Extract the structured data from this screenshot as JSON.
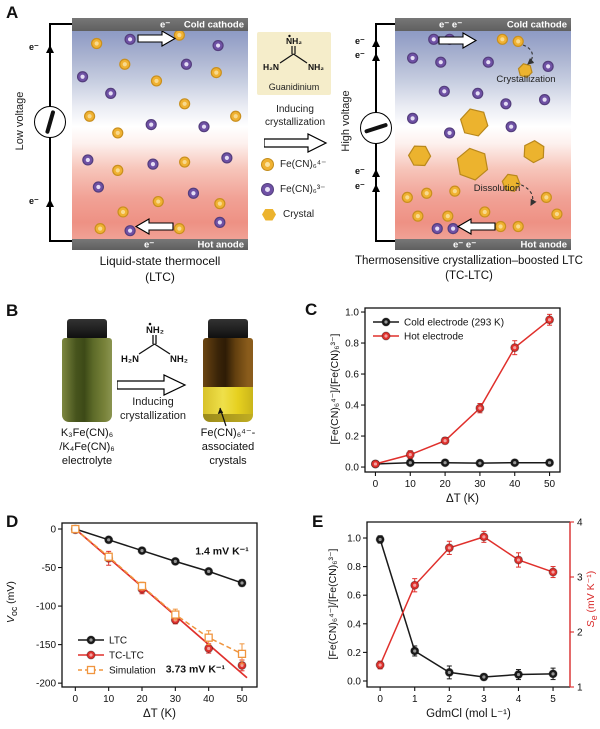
{
  "figure": {
    "panel_a": {
      "label": "A",
      "ltc": {
        "cold_electrode": "Cold cathode",
        "hot_electrode": "Hot anode",
        "e_top": "e⁻",
        "e_bottom": "e⁻",
        "wire_e": "e⁻",
        "voltage_label": "Low voltage",
        "caption_line1": "Liquid-state thermocell",
        "caption_line2": "(LTC)"
      },
      "tcltc": {
        "cold_electrode": "Cold cathode",
        "hot_electrode": "Hot anode",
        "e_top": "e⁻ e⁻",
        "e_bottom": "e⁻ e⁻",
        "wire_e": "e⁻",
        "voltage_label": "High voltage",
        "crystallization_label": "Crystallization",
        "dissolution_label": "Dissolution",
        "caption_line1": "Thermosensitive crystallization–boosted LTC",
        "caption_line2": "(TC-LTC)"
      },
      "guanidinium": {
        "top": "NH₂",
        "left": "H₂N",
        "right": "NH₂",
        "name": "Guanidinium"
      },
      "inducing_line1": "Inducing",
      "inducing_line2": "crystallization",
      "legend": [
        {
          "icon": "ferrocyanide-icon",
          "label": "Fe(CN)₆⁴⁻"
        },
        {
          "icon": "ferricyanide-icon",
          "label": "Fe(CN)₆³⁻"
        },
        {
          "icon": "crystal-icon",
          "label": "Crystal"
        }
      ],
      "particles_ltc": [
        [
          "p",
          33,
          4
        ],
        [
          "y",
          61,
          2
        ],
        [
          "p",
          83,
          7
        ],
        [
          "y",
          14,
          6
        ],
        [
          "p",
          6,
          22
        ],
        [
          "y",
          30,
          16
        ],
        [
          "p",
          65,
          16
        ],
        [
          "y",
          82,
          20
        ],
        [
          "p",
          22,
          30
        ],
        [
          "y",
          48,
          24
        ],
        [
          "y",
          64,
          35
        ],
        [
          "y",
          10,
          41
        ],
        [
          "p",
          45,
          45
        ],
        [
          "y",
          26,
          49
        ],
        [
          "p",
          75,
          46
        ],
        [
          "y",
          93,
          41
        ],
        [
          "p",
          9,
          62
        ],
        [
          "p",
          46,
          64
        ],
        [
          "y",
          64,
          63
        ],
        [
          "p",
          88,
          61
        ],
        [
          "y",
          26,
          67
        ],
        [
          "p",
          15,
          75
        ],
        [
          "p",
          69,
          78
        ],
        [
          "y",
          49,
          82
        ],
        [
          "y",
          84,
          83
        ],
        [
          "y",
          29,
          87
        ],
        [
          "p",
          33,
          96
        ],
        [
          "y",
          61,
          95
        ],
        [
          "p",
          84,
          92
        ],
        [
          "y",
          16,
          95
        ]
      ],
      "particles_tcltc": [
        [
          "p",
          22,
          4
        ],
        [
          "p",
          31,
          4
        ],
        [
          "p",
          10,
          13
        ],
        [
          "p",
          26,
          15
        ],
        [
          "p",
          53,
          15
        ],
        [
          "p",
          87,
          17
        ],
        [
          "p",
          28,
          29
        ],
        [
          "p",
          47,
          30
        ],
        [
          "p",
          63,
          35
        ],
        [
          "p",
          85,
          33
        ],
        [
          "p",
          10,
          42
        ],
        [
          "p",
          31,
          49
        ],
        [
          "p",
          66,
          46
        ],
        [
          "y",
          61,
          4
        ],
        [
          "y",
          70,
          5
        ],
        [
          "h",
          74,
          19,
          7
        ],
        [
          "h",
          45,
          44,
          14
        ],
        [
          "h",
          14,
          60,
          11
        ],
        [
          "h",
          44,
          64,
          16
        ],
        [
          "h",
          79,
          58,
          11
        ],
        [
          "h",
          66,
          73,
          9
        ],
        [
          "y",
          7,
          80
        ],
        [
          "y",
          18,
          78
        ],
        [
          "y",
          34,
          77
        ],
        [
          "y",
          51,
          87
        ],
        [
          "y",
          86,
          80
        ],
        [
          "y",
          13,
          89
        ],
        [
          "y",
          30,
          89
        ],
        [
          "y",
          60,
          94
        ],
        [
          "y",
          70,
          94
        ],
        [
          "y",
          92,
          88
        ],
        [
          "p",
          24,
          95
        ],
        [
          "p",
          33,
          95
        ]
      ]
    },
    "panel_b": {
      "label": "B",
      "guanidinium": {
        "top": "NH₂",
        "left": "H₂N",
        "right": "NH₂"
      },
      "inducing_line1": "Inducing",
      "inducing_line2": "crystallization",
      "left_vial_caption": [
        "K₃Fe(CN)₆",
        "/K₄Fe(CN)₆",
        "electrolyte"
      ],
      "right_vial_caption": [
        "Fe(CN)₆⁴⁻-",
        "associated",
        "crystals"
      ]
    },
    "panel_c_label": "C",
    "panel_d_label": "D",
    "panel_e_label": "E"
  },
  "chart_data": [
    {
      "id": "C",
      "type": "line",
      "xlabel": "ΔT (K)",
      "ylabel": "[Fe(CN)₆⁴⁻]/[Fe(CN)₆³⁻]",
      "xlim": [
        -3,
        53
      ],
      "ylim": [
        -0.032,
        1.026
      ],
      "xticks": [
        0,
        10,
        20,
        30,
        40,
        50
      ],
      "yticks": [
        0.0,
        0.2,
        0.4,
        0.6,
        0.8,
        1.0
      ],
      "ydec": 1,
      "x": [
        0,
        10,
        20,
        30,
        40,
        50
      ],
      "series": [
        {
          "name": "Cold electrode (293 K)",
          "color": "#1a1a1a",
          "marker": "circle",
          "line": "solid",
          "values": [
            0.02,
            0.028,
            0.028,
            0.025,
            0.028,
            0.028
          ],
          "err": [
            0.012,
            0.012,
            0.012,
            0.012,
            0.012,
            0.012
          ]
        },
        {
          "name": "Hot electrode",
          "color": "#e0302c",
          "marker": "circle",
          "line": "solid",
          "values": [
            0.02,
            0.08,
            0.17,
            0.38,
            0.77,
            0.95
          ],
          "err": [
            0.015,
            0.025,
            0.02,
            0.03,
            0.045,
            0.035
          ]
        }
      ],
      "legend": true,
      "grid": false
    },
    {
      "id": "D",
      "type": "line",
      "xlabel": "ΔT (K)",
      "ylabel_parts": {
        "pre": "V",
        "sub": "oc",
        "post": " (mV)"
      },
      "xlim": [
        -4,
        54.5
      ],
      "ylim": [
        -205,
        7.8
      ],
      "xticks": [
        0,
        10,
        20,
        30,
        40,
        50
      ],
      "yticks": [
        0,
        -50,
        -100,
        -150,
        -200
      ],
      "ydec": 0,
      "x": [
        0,
        10,
        20,
        30,
        40,
        50
      ],
      "series": [
        {
          "name": "LTC",
          "color": "#1a1a1a",
          "marker": "circle",
          "line": "solid",
          "values": [
            0,
            -14,
            -28,
            -42,
            -55,
            -70
          ],
          "err": [
            1.5,
            2.5,
            2.5,
            3,
            3,
            4
          ]
        },
        {
          "name": "TC-LTC",
          "color": "#e0302c",
          "marker": "circle",
          "line": "none",
          "values": [
            -1,
            -38,
            -78,
            -118,
            -155,
            -177
          ],
          "err": [
            2,
            9,
            6,
            5,
            6,
            7
          ]
        },
        {
          "name": "Simulation",
          "color": "#f0953f",
          "marker": "square-open",
          "line": "dash",
          "values": [
            0,
            -36,
            -74,
            -111,
            -141,
            -162
          ],
          "err": [
            1,
            5,
            5,
            7,
            9,
            13
          ]
        }
      ],
      "fitlines": [
        {
          "x1": 0,
          "y1": 0,
          "x2": 51.5,
          "y2": -193,
          "color": "#e0302c"
        }
      ],
      "annotations": [
        {
          "text": "1.4 mV K⁻¹",
          "x": 44,
          "y": -33,
          "color": "#1a1a1a"
        },
        {
          "text": "3.73 mV K⁻¹",
          "x": 36,
          "y": -186,
          "color": "#e0302c"
        }
      ],
      "legend": true,
      "grid": false
    },
    {
      "id": "E",
      "type": "line",
      "xlabel": "GdmCl (mol L⁻¹)",
      "ylabel": "[Fe(CN)₆⁴⁻]/[Fe(CN)₆³⁻]",
      "ylabel2_parts": {
        "pre": "S",
        "sub": "e",
        "post": " (mV K⁻¹)"
      },
      "axis2_color": "#d92b2b",
      "xlim": [
        -0.38,
        5.49
      ],
      "ylim": [
        -0.042,
        1.112
      ],
      "y2lim": [
        1,
        4
      ],
      "xticks": [
        0,
        1,
        2,
        3,
        4,
        5
      ],
      "yticks": [
        0.0,
        0.2,
        0.4,
        0.6,
        0.8,
        1.0
      ],
      "ydec": 1,
      "y2ticks": [
        1,
        2,
        3,
        4
      ],
      "x": [
        0,
        1,
        2,
        3,
        4,
        5
      ],
      "series": [
        {
          "name": "[Fe(CN)₆⁴⁻]/[Fe(CN)₆³⁻]",
          "color": "#1a1a1a",
          "marker": "circle",
          "line": "solid",
          "values": [
            0.99,
            0.21,
            0.06,
            0.028,
            0.045,
            0.05
          ],
          "err": [
            0.025,
            0.035,
            0.045,
            0.02,
            0.035,
            0.04
          ]
        },
        {
          "name": "Se",
          "color": "#e0302c",
          "marker": "circle",
          "line": "solid",
          "axis": "y2",
          "values": [
            1.4,
            2.85,
            3.53,
            3.73,
            3.31,
            3.09
          ],
          "err": [
            0.07,
            0.12,
            0.12,
            0.1,
            0.13,
            0.1
          ]
        }
      ],
      "legend": false,
      "grid": false
    }
  ]
}
